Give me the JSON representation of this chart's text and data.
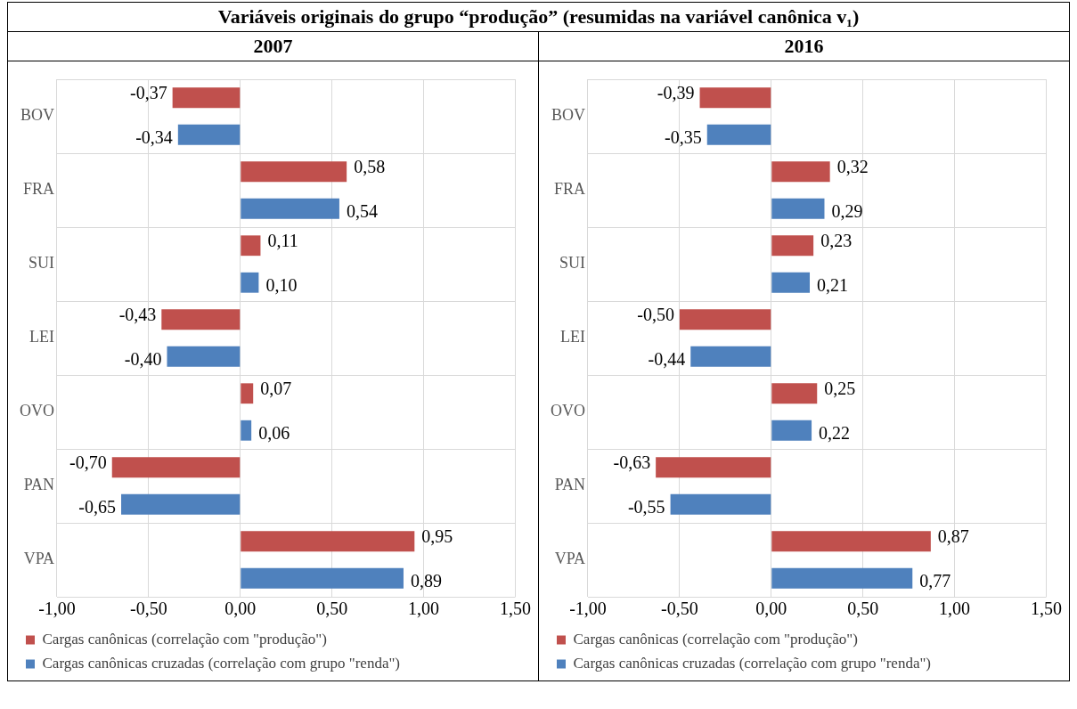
{
  "chart_data": [
    {
      "type": "bar",
      "orientation": "horizontal",
      "title": "Variáveis originais do grupo “produção” (resumidas na variável canônica v₁)",
      "subtitle": "2007",
      "categories": [
        "BOV",
        "FRA",
        "SUI",
        "LEI",
        "OVO",
        "PAN",
        "VPA"
      ],
      "series": [
        {
          "name": "Cargas canônicas (correlação com \"produção\")",
          "color": "#c0504d",
          "values": [
            -0.37,
            0.58,
            0.11,
            -0.43,
            0.07,
            -0.7,
            0.95
          ],
          "value_labels": [
            "-0,37",
            "0,58",
            "0,11",
            "-0,43",
            "0,07",
            "-0,70",
            "0,95"
          ]
        },
        {
          "name": "Cargas canônicas cruzadas (correlação com grupo \"renda\")",
          "color": "#4f81bd",
          "values": [
            -0.34,
            0.54,
            0.1,
            -0.4,
            0.06,
            -0.65,
            0.89
          ],
          "value_labels": [
            "-0,34",
            "0,54",
            "0,10",
            "-0,40",
            "0,06",
            "-0,65",
            "0,89"
          ]
        }
      ],
      "xlim": [
        -1,
        1.5
      ],
      "xticks": [
        {
          "value": -1,
          "label": "-1,00"
        },
        {
          "value": -0.5,
          "label": "-0,50"
        },
        {
          "value": 0,
          "label": "0,00"
        },
        {
          "value": 0.5,
          "label": "0,50"
        },
        {
          "value": 1,
          "label": "1,00"
        },
        {
          "value": 1.5,
          "label": "1,50"
        }
      ],
      "grid": true,
      "legend": "bottom left"
    },
    {
      "type": "bar",
      "orientation": "horizontal",
      "title": "2016",
      "categories": [
        "BOV",
        "FRA",
        "SUI",
        "LEI",
        "OVO",
        "PAN",
        "VPA"
      ],
      "series": [
        {
          "name": "Cargas canônicas (correlação com \"produção\")",
          "color": "#c0504d",
          "values": [
            -0.39,
            0.32,
            0.23,
            -0.5,
            0.25,
            -0.63,
            0.87
          ],
          "value_labels": [
            "-0,39",
            "0,32",
            "0,23",
            "-0,50",
            "0,25",
            "-0,63",
            "0,87"
          ]
        },
        {
          "name": "Cargas canônicas cruzadas (correlação com grupo \"renda\")",
          "color": "#4f81bd",
          "values": [
            -0.35,
            0.29,
            0.21,
            -0.44,
            0.22,
            -0.55,
            0.77
          ],
          "value_labels": [
            "-0,35",
            "0,29",
            "0,21",
            "-0,44",
            "0,22",
            "-0,55",
            "0,77"
          ]
        }
      ],
      "xlim": [
        -1,
        1.5
      ],
      "xticks": [
        {
          "value": -1,
          "label": "-1,00"
        },
        {
          "value": -0.5,
          "label": "-0,50"
        },
        {
          "value": 0,
          "label": "0,00"
        },
        {
          "value": 0.5,
          "label": "0,50"
        },
        {
          "value": 1,
          "label": "1,00"
        },
        {
          "value": 1.5,
          "label": "1,50"
        }
      ],
      "grid": true,
      "legend": "bottom left"
    }
  ]
}
